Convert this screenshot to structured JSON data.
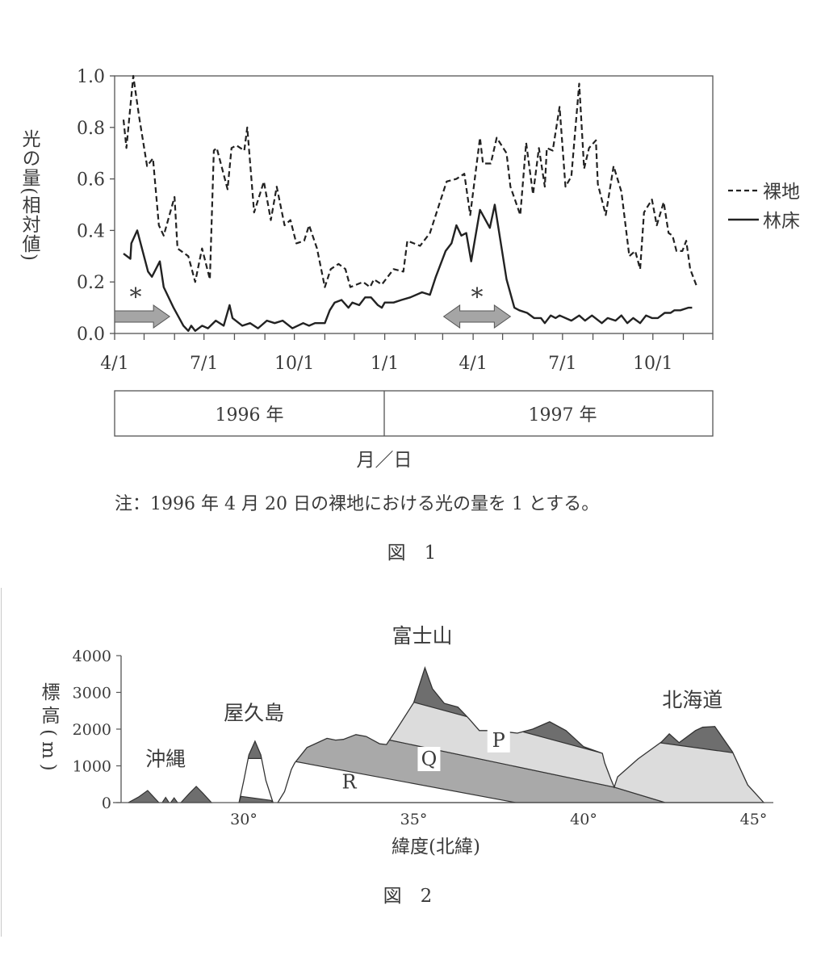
{
  "figure1": {
    "caption": "図　1",
    "note": "注：1996 年 4 月 20 日の裸地における光の量を 1 とする。",
    "xlabel": "月／日",
    "years": [
      "1996 年",
      "1997 年"
    ],
    "chart_data": {
      "type": "line",
      "ylabel": "光の量(相対値)",
      "ylim": [
        0,
        1.0
      ],
      "yticks": [
        "0.0",
        "0.2",
        "0.4",
        "0.6",
        "0.8",
        "1.0"
      ],
      "xlim": [
        "1996-04-01",
        "1997-12-01"
      ],
      "xtick_labels": [
        "4/1",
        "7/1",
        "10/1",
        "1/1",
        "4/1",
        "7/1",
        "10/1"
      ],
      "xtick_dates": [
        "1996-04-01",
        "1996-07-01",
        "1996-10-01",
        "1997-01-01",
        "1997-04-01",
        "1997-07-01",
        "1997-10-01"
      ],
      "legend": "right",
      "series": [
        {
          "name": "裸地",
          "style": "dashed",
          "x": [
            "1996-04-10",
            "1996-04-13",
            "1996-04-20",
            "1996-04-26",
            "1996-05-04",
            "1996-05-10",
            "1996-05-16",
            "1996-05-21",
            "1996-06-01",
            "1996-06-04",
            "1996-06-15",
            "1996-06-22",
            "1996-06-29",
            "1996-07-07",
            "1996-07-11",
            "1996-07-14",
            "1996-07-25",
            "1996-07-29",
            "1996-08-03",
            "1996-08-11",
            "1996-08-14",
            "1996-08-21",
            "1996-08-31",
            "1996-09-07",
            "1996-09-13",
            "1996-09-21",
            "1996-09-27",
            "1996-10-03",
            "1996-10-11",
            "1996-10-16",
            "1996-10-24",
            "1996-11-01",
            "1996-11-07",
            "1996-11-15",
            "1996-11-22",
            "1996-11-27",
            "1996-12-10",
            "1996-12-17",
            "1996-12-21",
            "1996-12-29",
            "1997-01-10",
            "1997-01-20",
            "1997-01-24",
            "1997-02-06",
            "1997-02-16",
            "1997-03-05",
            "1997-03-15",
            "1997-03-23",
            "1997-03-29",
            "1997-04-08",
            "1997-04-11",
            "1997-04-19",
            "1997-04-25",
            "1997-05-05",
            "1997-05-09",
            "1997-05-19",
            "1997-05-25",
            "1997-06-01",
            "1997-06-07",
            "1997-06-13",
            "1997-06-15",
            "1997-06-21",
            "1997-06-28",
            "1997-07-04",
            "1997-07-10",
            "1997-07-18",
            "1997-07-23",
            "1997-07-28",
            "1997-08-04",
            "1997-08-06",
            "1997-08-14",
            "1997-08-22",
            "1997-08-30",
            "1997-09-07",
            "1997-09-13",
            "1997-09-18",
            "1997-09-22",
            "1997-09-30",
            "1997-10-05",
            "1997-10-12",
            "1997-10-17",
            "1997-10-21",
            "1997-10-25",
            "1997-10-31",
            "1997-11-04",
            "1997-11-08",
            "1997-11-15"
          ],
          "y": [
            0.83,
            0.72,
            1.0,
            0.84,
            0.65,
            0.68,
            0.42,
            0.38,
            0.53,
            0.33,
            0.3,
            0.2,
            0.33,
            0.21,
            0.71,
            0.72,
            0.56,
            0.72,
            0.73,
            0.71,
            0.8,
            0.47,
            0.59,
            0.44,
            0.57,
            0.42,
            0.44,
            0.35,
            0.36,
            0.42,
            0.33,
            0.18,
            0.25,
            0.27,
            0.25,
            0.18,
            0.2,
            0.18,
            0.21,
            0.19,
            0.25,
            0.24,
            0.36,
            0.34,
            0.39,
            0.59,
            0.6,
            0.62,
            0.46,
            0.76,
            0.66,
            0.66,
            0.76,
            0.7,
            0.57,
            0.46,
            0.74,
            0.54,
            0.72,
            0.57,
            0.72,
            0.71,
            0.88,
            0.57,
            0.61,
            0.97,
            0.64,
            0.72,
            0.75,
            0.58,
            0.46,
            0.65,
            0.55,
            0.3,
            0.32,
            0.25,
            0.47,
            0.52,
            0.42,
            0.51,
            0.39,
            0.38,
            0.32,
            0.32,
            0.36,
            0.25,
            0.18
          ]
        },
        {
          "name": "林床",
          "style": "solid",
          "x": [
            "1996-04-10",
            "1996-04-17",
            "1996-04-18",
            "1996-04-24",
            "1996-05-05",
            "1996-05-09",
            "1996-05-17",
            "1996-05-21",
            "1996-05-31",
            "1996-06-10",
            "1996-06-15",
            "1996-06-18",
            "1996-06-22",
            "1996-06-29",
            "1996-07-05",
            "1996-07-13",
            "1996-07-21",
            "1996-07-27",
            "1996-07-30",
            "1996-08-09",
            "1996-08-17",
            "1996-08-25",
            "1996-09-03",
            "1996-09-11",
            "1996-09-19",
            "1996-09-29",
            "1996-10-10",
            "1996-10-16",
            "1996-10-22",
            "1996-11-01",
            "1996-11-06",
            "1996-11-11",
            "1996-11-18",
            "1996-11-25",
            "1996-11-29",
            "1996-12-06",
            "1996-12-12",
            "1996-12-18",
            "1996-12-25",
            "1996-12-29",
            "1997-01-01",
            "1997-01-10",
            "1997-01-18",
            "1997-01-27",
            "1997-02-08",
            "1997-02-16",
            "1997-02-22",
            "1997-03-04",
            "1997-03-10",
            "1997-03-15",
            "1997-03-20",
            "1997-03-25",
            "1997-03-30",
            "1997-04-08",
            "1997-04-18",
            "1997-04-23",
            "1997-05-05",
            "1997-05-13",
            "1997-05-18",
            "1997-05-26",
            "1997-06-02",
            "1997-06-09",
            "1997-06-13",
            "1997-06-19",
            "1997-06-24",
            "1997-06-28",
            "1997-07-10",
            "1997-07-18",
            "1997-07-24",
            "1997-07-31",
            "1997-08-10",
            "1997-08-16",
            "1997-08-24",
            "1997-08-30",
            "1997-09-05",
            "1997-09-11",
            "1997-09-18",
            "1997-09-24",
            "1997-09-30",
            "1997-10-06",
            "1997-10-13",
            "1997-10-19",
            "1997-10-23",
            "1997-10-29",
            "1997-11-06",
            "1997-11-10"
          ],
          "y": [
            0.31,
            0.29,
            0.35,
            0.4,
            0.24,
            0.22,
            0.28,
            0.18,
            0.1,
            0.03,
            0.01,
            0.03,
            0.01,
            0.03,
            0.02,
            0.05,
            0.03,
            0.11,
            0.06,
            0.03,
            0.04,
            0.02,
            0.05,
            0.04,
            0.05,
            0.02,
            0.04,
            0.03,
            0.04,
            0.04,
            0.09,
            0.12,
            0.13,
            0.1,
            0.12,
            0.11,
            0.14,
            0.14,
            0.11,
            0.1,
            0.12,
            0.12,
            0.13,
            0.14,
            0.16,
            0.15,
            0.22,
            0.32,
            0.35,
            0.42,
            0.38,
            0.39,
            0.28,
            0.48,
            0.41,
            0.5,
            0.21,
            0.1,
            0.09,
            0.08,
            0.06,
            0.06,
            0.04,
            0.07,
            0.06,
            0.07,
            0.05,
            0.07,
            0.05,
            0.07,
            0.04,
            0.06,
            0.05,
            0.07,
            0.04,
            0.06,
            0.04,
            0.07,
            0.06,
            0.06,
            0.08,
            0.08,
            0.09,
            0.09,
            0.1,
            0.1
          ]
        }
      ],
      "annotations": [
        {
          "label": "*",
          "arrow": "right",
          "from": "1996-04-01",
          "to": "1996-05-27"
        },
        {
          "label": "*",
          "arrow": "both",
          "from": "1997-03-02",
          "to": "1997-05-09"
        }
      ],
      "colors": {
        "line": "#222222",
        "arrow_fill": "#a5a5a5",
        "arrow_edge": "#555555"
      }
    }
  },
  "figure2": {
    "caption": "図　2",
    "chart_data": {
      "type": "area",
      "ylabel": "標高(m)",
      "xlabel": "緯度(北緯)",
      "ylim": [
        0,
        4000
      ],
      "yticks": [
        "0",
        "1000",
        "2000",
        "3000",
        "4000"
      ],
      "xticks": [
        30,
        35,
        40,
        45
      ],
      "xtick_labels": [
        "30°",
        "35°",
        "40°",
        "45°"
      ],
      "place_labels": [
        {
          "text": "沖縄",
          "lat": 27.7,
          "elev": 1000
        },
        {
          "text": "屋久島",
          "lat": 30.3,
          "elev": 2250
        },
        {
          "text": "富士山",
          "lat": 35.25,
          "elev": 4350
        },
        {
          "text": "北海道",
          "lat": 43.2,
          "elev": 2600
        }
      ],
      "zone_labels": [
        {
          "text": "P",
          "lat": 37.5,
          "elev": 1520
        },
        {
          "text": "Q",
          "lat": 35.45,
          "elev": 1010
        },
        {
          "text": "R",
          "lat": 33.1,
          "elev": 380
        }
      ],
      "terrain": {
        "okinawa": [
          [
            [
              26.6,
              0
            ],
            [
              26.9,
              150
            ],
            [
              27.17,
              330
            ],
            [
              27.35,
              150
            ],
            [
              27.5,
              0
            ]
          ],
          [
            [
              27.6,
              0
            ],
            [
              27.7,
              140
            ],
            [
              27.8,
              0
            ]
          ],
          [
            [
              27.85,
              0
            ],
            [
              27.95,
              130
            ],
            [
              28.05,
              0
            ]
          ],
          [
            [
              28.15,
              0
            ],
            [
              28.4,
              250
            ],
            [
              28.6,
              440
            ],
            [
              28.8,
              250
            ],
            [
              29.05,
              0
            ]
          ]
        ],
        "yakushima": [
          [
            29.86,
            0
          ],
          [
            30.0,
            600
          ],
          [
            30.15,
            1300
          ],
          [
            30.33,
            1670
          ],
          [
            30.5,
            1300
          ],
          [
            30.65,
            600
          ],
          [
            30.86,
            0
          ]
        ],
        "mainland": [
          [
            31.0,
            0
          ],
          [
            31.2,
            300
          ],
          [
            31.4,
            900
          ],
          [
            31.5,
            1080
          ],
          [
            31.86,
            1500
          ],
          [
            32.45,
            1750
          ],
          [
            32.7,
            1700
          ],
          [
            32.93,
            1720
          ],
          [
            33.3,
            1850
          ],
          [
            33.6,
            1800
          ],
          [
            34.0,
            1600
          ],
          [
            34.2,
            1580
          ],
          [
            34.5,
            2000
          ],
          [
            35.0,
            2720
          ],
          [
            35.33,
            3670
          ],
          [
            35.55,
            3100
          ],
          [
            35.9,
            2700
          ],
          [
            36.3,
            2600
          ],
          [
            36.62,
            2290
          ],
          [
            36.93,
            1960
          ],
          [
            37.4,
            1960
          ],
          [
            38.05,
            1890
          ],
          [
            38.5,
            2000
          ],
          [
            39.0,
            2200
          ],
          [
            39.48,
            1960
          ],
          [
            40.0,
            1520
          ],
          [
            40.55,
            1340
          ],
          [
            40.62,
            1080
          ],
          [
            40.8,
            640
          ],
          [
            40.9,
            420
          ],
          [
            41.0,
            700
          ],
          [
            41.6,
            1190
          ],
          [
            42.29,
            1650
          ],
          [
            42.52,
            1870
          ],
          [
            42.81,
            1630
          ],
          [
            43.29,
            1960
          ],
          [
            43.5,
            2050
          ],
          [
            43.86,
            2070
          ],
          [
            44.38,
            1380
          ],
          [
            44.83,
            480
          ],
          [
            45.3,
            0
          ]
        ]
      },
      "zones": {
        "yakushima_top_above": 1200,
        "yakushima_bottom": [
          [
            29.86,
            0
          ],
          [
            29.92,
            170
          ],
          [
            30.8,
            60
          ],
          [
            30.86,
            0
          ]
        ],
        "Q": [
          [
            30.9,
            4000
          ],
          [
            34.05,
            4000
          ],
          [
            34.3,
            1700
          ],
          [
            40.9,
            420
          ],
          [
            42.4,
            0
          ],
          [
            38.0,
            0
          ],
          [
            31.5,
            1120
          ],
          [
            30.9,
            1120
          ]
        ],
        "P": [
          [
            34.05,
            4000
          ],
          [
            46,
            4000
          ],
          [
            46,
            0
          ],
          [
            42.4,
            0
          ],
          [
            40.9,
            420
          ],
          [
            34.3,
            1700
          ]
        ],
        "alpine": [
          [
            [
              34.6,
              2830
            ],
            [
              41.0,
              1230
            ],
            [
              41.0,
              4000
            ],
            [
              34.6,
              4000
            ]
          ],
          [
            [
              42.0,
              1660
            ],
            [
              44.6,
              1330
            ],
            [
              44.6,
              4000
            ],
            [
              42.0,
              4000
            ]
          ]
        ]
      },
      "colors": {
        "alpine": "#6e6e6e",
        "Q": "#a9a9a9",
        "P": "#dcdcdc",
        "R": "#ffffff",
        "outline": "#333333"
      }
    }
  }
}
